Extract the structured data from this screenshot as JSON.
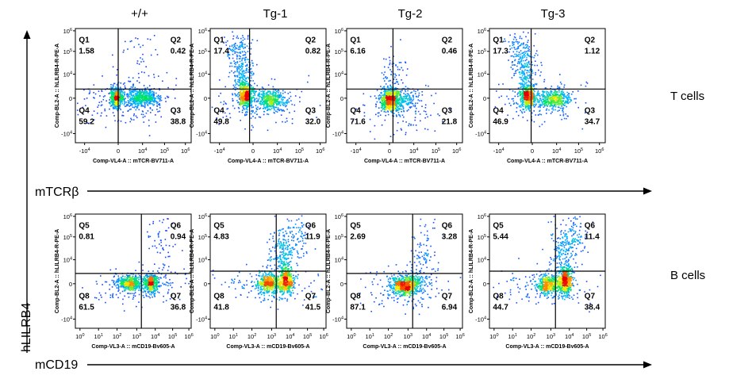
{
  "figure": {
    "column_headers": [
      "+/+",
      "Tg-1",
      "Tg-2",
      "Tg-3"
    ],
    "row_labels": [
      "T cells",
      "B cells"
    ],
    "x_axis_arrows": [
      "mTCRβ",
      "mCD19"
    ],
    "y_axis_arrow": "hLILRB4"
  },
  "chart_data": [
    {
      "type": "scatter",
      "group": "+/+",
      "population": "T cells",
      "xlabel": "Comp-VL4-A :: mTCR-BV711-A",
      "ylabel": "Comp-BL2-A :: hLILRB4-R-PE-A",
      "x_ticks": [
        "-10^4",
        "0",
        "10^4",
        "10^5",
        "10^6"
      ],
      "y_ticks": [
        "-10^4",
        "0",
        "10^4",
        "10^5",
        "10^6"
      ],
      "quadrants": [
        {
          "name": "Q1",
          "value": 1.58
        },
        {
          "name": "Q2",
          "value": 0.42
        },
        {
          "name": "Q3",
          "value": 38.8
        },
        {
          "name": "Q4",
          "value": 59.2
        }
      ]
    },
    {
      "type": "scatter",
      "group": "Tg-1",
      "population": "T cells",
      "xlabel": "Comp-VL4-A :: mTCR-BV711-A",
      "ylabel": "Comp-BL2-A :: hLILRB4-R-PE-A",
      "x_ticks": [
        "-10^4",
        "0",
        "10^4",
        "10^5",
        "10^6"
      ],
      "y_ticks": [
        "-10^4",
        "0",
        "10^4",
        "10^5",
        "10^6"
      ],
      "quadrants": [
        {
          "name": "Q1",
          "value": 17.4
        },
        {
          "name": "Q2",
          "value": 0.82
        },
        {
          "name": "Q3",
          "value": 32.0
        },
        {
          "name": "Q4",
          "value": 49.8
        }
      ]
    },
    {
      "type": "scatter",
      "group": "Tg-2",
      "population": "T cells",
      "xlabel": "Comp-VL4-A :: mTCR-BV711-A",
      "ylabel": "Comp-BL2-A :: hLILRB4-R-PE-A",
      "x_ticks": [
        "-10^4",
        "0",
        "10^4",
        "10^5",
        "10^6"
      ],
      "y_ticks": [
        "-10^4",
        "0",
        "10^4",
        "10^5",
        "10^6"
      ],
      "quadrants": [
        {
          "name": "Q1",
          "value": 6.16
        },
        {
          "name": "Q2",
          "value": 0.46
        },
        {
          "name": "Q3",
          "value": 21.8
        },
        {
          "name": "Q4",
          "value": 71.6
        }
      ]
    },
    {
      "type": "scatter",
      "group": "Tg-3",
      "population": "T cells",
      "xlabel": "Comp-VL4-A :: mTCR-BV711-A",
      "ylabel": "Comp-BL2-A :: hLILRB4-R-PE-A",
      "x_ticks": [
        "-10^4",
        "0",
        "10^4",
        "10^5",
        "10^6"
      ],
      "y_ticks": [
        "-10^4",
        "0",
        "10^4",
        "10^5",
        "10^6"
      ],
      "quadrants": [
        {
          "name": "Q1",
          "value": 17.3
        },
        {
          "name": "Q2",
          "value": 1.12
        },
        {
          "name": "Q3",
          "value": 34.7
        },
        {
          "name": "Q4",
          "value": 46.9
        }
      ]
    },
    {
      "type": "scatter",
      "group": "+/+",
      "population": "B cells",
      "xlabel": "Comp-VL3-A :: mCD19-Bv605-A",
      "ylabel": "Comp-BL2-A :: hLILRB4-R-PE-A",
      "x_ticks": [
        "10^0",
        "10^1",
        "10^2",
        "10^3",
        "10^4",
        "10^5",
        "10^6"
      ],
      "y_ticks": [
        "-10^4",
        "0",
        "10^4",
        "10^5",
        "10^6"
      ],
      "quadrants": [
        {
          "name": "Q5",
          "value": 0.81
        },
        {
          "name": "Q6",
          "value": 0.94
        },
        {
          "name": "Q7",
          "value": 36.8
        },
        {
          "name": "Q8",
          "value": 61.5
        }
      ]
    },
    {
      "type": "scatter",
      "group": "Tg-1",
      "population": "B cells",
      "xlabel": "Comp-VL3-A :: mCD19-Bv605-A",
      "ylabel": "Comp-BL2-A :: hLILRB4-R-PE-A",
      "x_ticks": [
        "10^0",
        "10^1",
        "10^2",
        "10^3",
        "10^4",
        "10^5",
        "10^6"
      ],
      "y_ticks": [
        "-10^4",
        "0",
        "10^4",
        "10^5",
        "10^6"
      ],
      "quadrants": [
        {
          "name": "Q5",
          "value": 4.83
        },
        {
          "name": "Q6",
          "value": 11.9
        },
        {
          "name": "Q7",
          "value": 41.5
        },
        {
          "name": "Q8",
          "value": 41.8
        }
      ]
    },
    {
      "type": "scatter",
      "group": "Tg-2",
      "population": "B cells",
      "xlabel": "Comp-VL3-A :: mCD19-Bv605-A",
      "ylabel": "Comp-BL2-A :: hLILRB4-R-PE-A",
      "x_ticks": [
        "10^0",
        "10^1",
        "10^2",
        "10^3",
        "10^4",
        "10^5",
        "10^6"
      ],
      "y_ticks": [
        "-10^4",
        "0",
        "10^4",
        "10^5",
        "10^6"
      ],
      "quadrants": [
        {
          "name": "Q5",
          "value": 2.69
        },
        {
          "name": "Q6",
          "value": 3.28
        },
        {
          "name": "Q7",
          "value": 6.94
        },
        {
          "name": "Q8",
          "value": 87.1
        }
      ]
    },
    {
      "type": "scatter",
      "group": "Tg-3",
      "population": "B cells",
      "xlabel": "Comp-VL3-A :: mCD19-Bv605-A",
      "ylabel": "Comp-BL2-A :: hLILRB4-R-PE-A",
      "x_ticks": [
        "10^0",
        "10^1",
        "10^2",
        "10^3",
        "10^4",
        "10^5",
        "10^6"
      ],
      "y_ticks": [
        "-10^4",
        "0",
        "10^4",
        "10^5",
        "10^6"
      ],
      "quadrants": [
        {
          "name": "Q5",
          "value": 5.44
        },
        {
          "name": "Q6",
          "value": 11.4
        },
        {
          "name": "Q7",
          "value": 38.4
        },
        {
          "name": "Q8",
          "value": 44.7
        }
      ]
    }
  ]
}
